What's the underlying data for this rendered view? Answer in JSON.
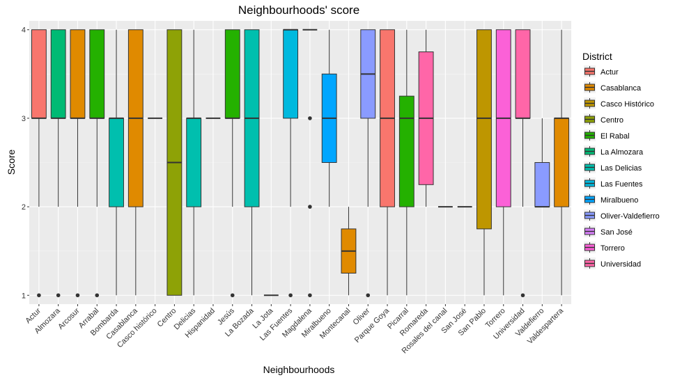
{
  "chart_data": {
    "type": "boxplot",
    "title": "Neighbourhoods' score",
    "xlabel": "Neighbourhoods",
    "ylabel": "Score",
    "ylim": [
      0.9,
      4.1
    ],
    "yticks": [
      1,
      2,
      3,
      4
    ],
    "legend_title": "District",
    "legend_position": "right",
    "districts": [
      {
        "name": "Actur",
        "color": "#F8766D"
      },
      {
        "name": "Casablanca",
        "color": "#E08A00"
      },
      {
        "name": "Casco Histórico",
        "color": "#BE9600"
      },
      {
        "name": "Centro",
        "color": "#8EA206"
      },
      {
        "name": "El Rabal",
        "color": "#24B100"
      },
      {
        "name": "La Almozara",
        "color": "#00BA74"
      },
      {
        "name": "Las Delicias",
        "color": "#00BFAE"
      },
      {
        "name": "Las Fuentes",
        "color": "#00B9DE"
      },
      {
        "name": "Miralbueno",
        "color": "#00A6FF"
      },
      {
        "name": "Oliver-Valdefierro",
        "color": "#8A9BFF"
      },
      {
        "name": "San José",
        "color": "#D77FF9"
      },
      {
        "name": "Torrero",
        "color": "#FB61D7"
      },
      {
        "name": "Universidad",
        "color": "#FF66A8"
      }
    ],
    "boxes": [
      {
        "category": "Actur",
        "district": "Actur",
        "whisker_low": 2,
        "q1": 3,
        "median": 3,
        "q3": 4,
        "whisker_high": 4,
        "outliers": [
          1
        ]
      },
      {
        "category": "Almozara",
        "district": "La Almozara",
        "whisker_low": 2,
        "q1": 3,
        "median": 3,
        "q3": 4,
        "whisker_high": 4,
        "outliers": [
          1
        ]
      },
      {
        "category": "Arcosur",
        "district": "Casablanca",
        "whisker_low": 2,
        "q1": 3,
        "median": 3,
        "q3": 4,
        "whisker_high": 4,
        "outliers": [
          1
        ]
      },
      {
        "category": "Arrabal",
        "district": "El Rabal",
        "whisker_low": 2,
        "q1": 3,
        "median": 3,
        "q3": 4,
        "whisker_high": 4,
        "outliers": [
          1
        ]
      },
      {
        "category": "Bombarda",
        "district": "Las Delicias",
        "whisker_low": 1,
        "q1": 2,
        "median": 3,
        "q3": 3,
        "whisker_high": 4,
        "outliers": []
      },
      {
        "category": "Casablanca",
        "district": "Casablanca",
        "whisker_low": 1,
        "q1": 2,
        "median": 3,
        "q3": 4,
        "whisker_high": 4,
        "outliers": []
      },
      {
        "category": "Casco histórico",
        "district": "Casco Histórico",
        "whisker_low": 3,
        "q1": 3,
        "median": 3,
        "q3": 3,
        "whisker_high": 3,
        "outliers": []
      },
      {
        "category": "Centro",
        "district": "Centro",
        "whisker_low": 1,
        "q1": 1,
        "median": 2.5,
        "q3": 4,
        "whisker_high": 4,
        "outliers": []
      },
      {
        "category": "Delicias",
        "district": "Las Delicias",
        "whisker_low": 1,
        "q1": 2,
        "median": 3,
        "q3": 3,
        "whisker_high": 4,
        "outliers": []
      },
      {
        "category": "Hispanidad",
        "district": "Las Delicias",
        "whisker_low": 3,
        "q1": 3,
        "median": 3,
        "q3": 3,
        "whisker_high": 3,
        "outliers": []
      },
      {
        "category": "Jesús",
        "district": "El Rabal",
        "whisker_low": 2,
        "q1": 3,
        "median": 3,
        "q3": 4,
        "whisker_high": 4,
        "outliers": [
          1
        ]
      },
      {
        "category": "La Bozada",
        "district": "Las Delicias",
        "whisker_low": 1,
        "q1": 2,
        "median": 3,
        "q3": 4,
        "whisker_high": 4,
        "outliers": []
      },
      {
        "category": "La Jota",
        "district": "Las Fuentes",
        "whisker_low": 1,
        "q1": 1,
        "median": 1,
        "q3": 1,
        "whisker_high": 1,
        "outliers": []
      },
      {
        "category": "Las Fuentes",
        "district": "Las Fuentes",
        "whisker_low": 2,
        "q1": 3,
        "median": 4,
        "q3": 4,
        "whisker_high": 4,
        "outliers": [
          1
        ]
      },
      {
        "category": "Magdalena",
        "district": "Casco Histórico",
        "whisker_low": 4,
        "q1": 4,
        "median": 4,
        "q3": 4,
        "whisker_high": 4,
        "outliers": [
          3,
          2,
          1
        ]
      },
      {
        "category": "Miralbueno",
        "district": "Miralbueno",
        "whisker_low": 2,
        "q1": 2.5,
        "median": 3,
        "q3": 3.5,
        "whisker_high": 4,
        "outliers": []
      },
      {
        "category": "Montecanal",
        "district": "Casablanca",
        "whisker_low": 1,
        "q1": 1.25,
        "median": 1.5,
        "q3": 1.75,
        "whisker_high": 2,
        "outliers": []
      },
      {
        "category": "Oliver",
        "district": "Oliver-Valdefierro",
        "whisker_low": 2,
        "q1": 3,
        "median": 3.5,
        "q3": 4,
        "whisker_high": 4,
        "outliers": [
          1
        ]
      },
      {
        "category": "Parque Goya",
        "district": "Actur",
        "whisker_low": 1,
        "q1": 2,
        "median": 3,
        "q3": 4,
        "whisker_high": 4,
        "outliers": []
      },
      {
        "category": "Picarral",
        "district": "El Rabal",
        "whisker_low": 1,
        "q1": 2,
        "median": 3,
        "q3": 3.25,
        "whisker_high": 4,
        "outliers": []
      },
      {
        "category": "Romareda",
        "district": "Universidad",
        "whisker_low": 2,
        "q1": 2.25,
        "median": 3,
        "q3": 3.75,
        "whisker_high": 4,
        "outliers": []
      },
      {
        "category": "Rosales del canal",
        "district": "Casablanca",
        "whisker_low": 2,
        "q1": 2,
        "median": 2,
        "q3": 2,
        "whisker_high": 2,
        "outliers": []
      },
      {
        "category": "San José",
        "district": "San José",
        "whisker_low": 2,
        "q1": 2,
        "median": 2,
        "q3": 2,
        "whisker_high": 2,
        "outliers": []
      },
      {
        "category": "San Pablo",
        "district": "Casco Histórico",
        "whisker_low": 1,
        "q1": 1.75,
        "median": 3,
        "q3": 4,
        "whisker_high": 4,
        "outliers": []
      },
      {
        "category": "Torrero",
        "district": "Torrero",
        "whisker_low": 1,
        "q1": 2,
        "median": 3,
        "q3": 4,
        "whisker_high": 4,
        "outliers": []
      },
      {
        "category": "Universidad",
        "district": "Universidad",
        "whisker_low": 2,
        "q1": 3,
        "median": 3,
        "q3": 4,
        "whisker_high": 4,
        "outliers": [
          1
        ]
      },
      {
        "category": "Valdefierro",
        "district": "Oliver-Valdefierro",
        "whisker_low": 2,
        "q1": 2,
        "median": 2,
        "q3": 2.5,
        "whisker_high": 3,
        "outliers": []
      },
      {
        "category": "Valdespartera",
        "district": "Casablanca",
        "whisker_low": 1,
        "q1": 2,
        "median": 3,
        "q3": 3,
        "whisker_high": 4,
        "outliers": []
      }
    ]
  }
}
